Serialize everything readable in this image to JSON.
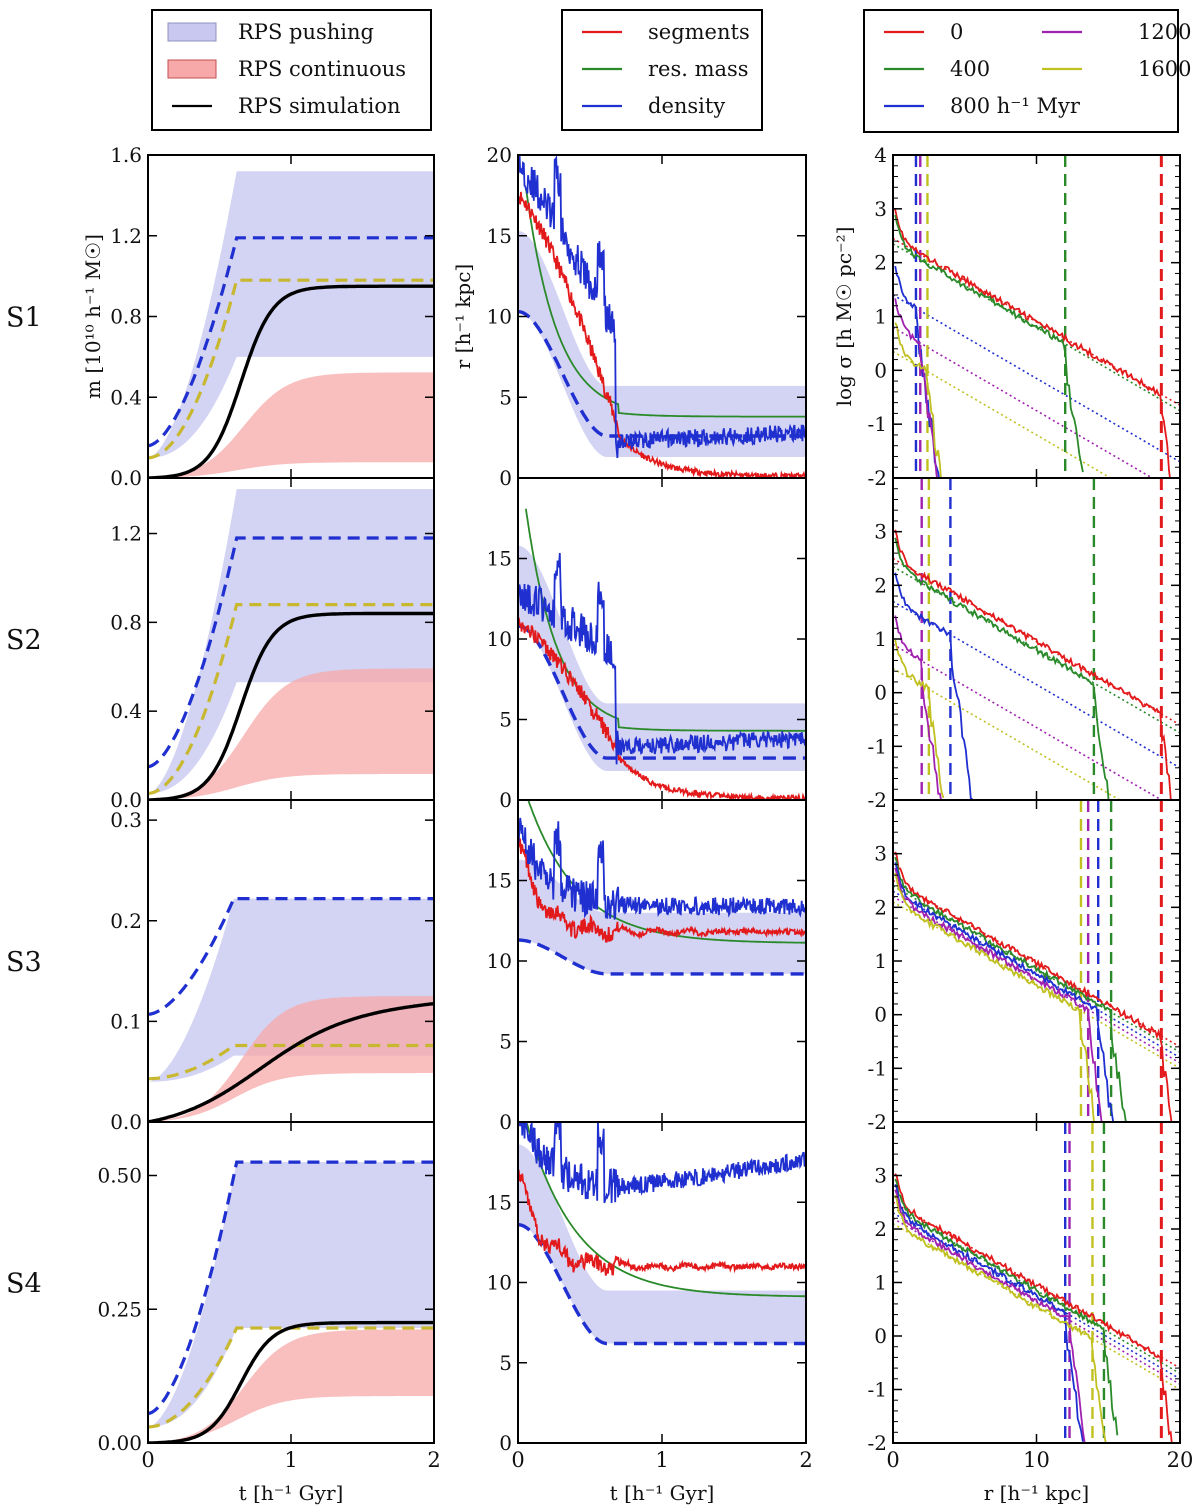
{
  "chart_data": {
    "type": "line",
    "title": "",
    "row_labels": [
      "S1",
      "S2",
      "S3",
      "S4"
    ],
    "legends": [
      {
        "entries": [
          {
            "label": "RPS pushing",
            "kind": "patch",
            "color": "#c8c8f0"
          },
          {
            "label": "RPS continuous",
            "kind": "patch",
            "color": "#f7a8a8"
          },
          {
            "label": "RPS simulation",
            "kind": "line",
            "color": "#000000"
          }
        ]
      },
      {
        "entries": [
          {
            "label": "segments",
            "kind": "line",
            "color": "#e31a1c"
          },
          {
            "label": "res. mass",
            "kind": "line",
            "color": "#2a8a2a"
          },
          {
            "label": "density",
            "kind": "line",
            "color": "#1f2fd0"
          }
        ]
      },
      {
        "entries": [
          {
            "label": "0",
            "kind": "line",
            "color": "#e31a1c"
          },
          {
            "label": "400",
            "kind": "line",
            "color": "#2a8a2a"
          },
          {
            "label": "800 h⁻¹ Myr",
            "kind": "line",
            "color": "#1f2fd0"
          },
          {
            "label": "1200",
            "kind": "line",
            "color": "#a020b0"
          },
          {
            "label": "1600",
            "kind": "line",
            "color": "#c0c020"
          }
        ]
      }
    ],
    "columns": [
      {
        "xlabel": "t [h⁻¹ Gyr]",
        "ylabel": "m [10¹⁰ h⁻¹ M☉]",
        "xlim": [
          0,
          2
        ],
        "xticks": [
          "0",
          "1",
          "2"
        ],
        "panels": [
          {
            "ylim": [
              0,
              1.6
            ],
            "yticks": [
              "0.0",
              "0.4",
              "0.8",
              "1.2",
              "1.6"
            ],
            "push_low": 0.1,
            "push_high": 1.52,
            "push_low_plateau": 0.6,
            "blue_dash_start": 0.16,
            "blue_dash_plateau": 1.19,
            "yellow_dash_start": 0.1,
            "yellow_dash_plateau": 0.98,
            "cont_plateau": 0.53,
            "cont_low": 0.08,
            "sim_plateau": 0.95,
            "t_switch": 0.62
          },
          {
            "ylim": [
              0,
              1.45
            ],
            "yticks": [
              "0.0",
              "0.4",
              "0.8",
              "1.2"
            ],
            "push_low": 0.03,
            "push_high": 1.4,
            "push_low_plateau": 0.53,
            "blue_dash_start": 0.15,
            "blue_dash_plateau": 1.18,
            "yellow_dash_start": 0.03,
            "yellow_dash_plateau": 0.88,
            "cont_plateau": 0.6,
            "cont_low": 0.12,
            "sim_plateau": 0.84,
            "t_switch": 0.62
          },
          {
            "ylim": [
              0,
              0.32
            ],
            "yticks": [
              "0.0",
              "0.1",
              "0.2",
              "0.3"
            ],
            "push_low": 0.04,
            "push_high": 0.222,
            "push_low_plateau": 0.066,
            "blue_dash_start": 0.107,
            "blue_dash_plateau": 0.222,
            "yellow_dash_start": 0.043,
            "yellow_dash_plateau": 0.076,
            "cont_plateau": 0.127,
            "cont_low": 0.05,
            "sim_plateau": 0.12,
            "t_switch": 0.6
          },
          {
            "ylim": [
              0,
              0.6
            ],
            "yticks": [
              "0.00",
              "0.25",
              "0.50"
            ],
            "push_low": 0.03,
            "push_high": 0.525,
            "push_low_plateau": 0.215,
            "blue_dash_start": 0.055,
            "blue_dash_plateau": 0.525,
            "yellow_dash_start": 0.03,
            "yellow_dash_plateau": 0.215,
            "cont_plateau": 0.215,
            "cont_low": 0.09,
            "sim_plateau": 0.225,
            "t_switch": 0.62
          }
        ]
      },
      {
        "xlabel": "t [h⁻¹ Gyr]",
        "ylabel": "r [h⁻¹ kpc]",
        "xlim": [
          0,
          2
        ],
        "xticks": [
          "0",
          "1",
          "2"
        ],
        "panels": [
          {
            "ylim": [
              0,
              20
            ],
            "yticks": [
              "0",
              "5",
              "10",
              "15",
              "20"
            ],
            "band_high_plateau": 5.7,
            "band_low_plateau": 1.3,
            "dash_start": 10.3,
            "dash_plateau": 2.6,
            "segments_start": 17.5,
            "segments_end": 0.1,
            "resmass_plateau": 3.8,
            "density_level": 2.0
          },
          {
            "ylim": [
              0,
              20
            ],
            "yticks": [
              "0",
              "5",
              "10",
              "15"
            ],
            "band_high_plateau": 6.0,
            "band_low_plateau": 1.8,
            "dash_start": 10.8,
            "dash_plateau": 2.6,
            "segments_start": 11.0,
            "segments_end": 0.1,
            "resmass_plateau": 4.3,
            "density_level": 3.0
          },
          {
            "ylim": [
              0,
              20
            ],
            "yticks": [
              "0",
              "5",
              "10",
              "15"
            ],
            "band_high_plateau": 13.0,
            "band_low_plateau": 9.2,
            "dash_start": 11.3,
            "dash_plateau": 9.2,
            "segments_start": 17.5,
            "segments_end": 11.8,
            "resmass_plateau": 11.1,
            "density_level": 13.4
          },
          {
            "ylim": [
              0,
              20
            ],
            "yticks": [
              "0",
              "5",
              "10",
              "15"
            ],
            "band_high_plateau": 9.5,
            "band_low_plateau": 6.2,
            "dash_start": 13.6,
            "dash_plateau": 6.2,
            "segments_start": 17.0,
            "segments_end": 11.0,
            "resmass_plateau": 9.1,
            "density_level": 15.8
          }
        ]
      },
      {
        "xlabel": "r [h⁻¹ kpc]",
        "ylabel": "log σ [h M☉ pc⁻²]",
        "xlim": [
          0,
          20
        ],
        "xticks": [
          "0",
          "10",
          "20"
        ],
        "panels": [
          {
            "ylim": [
              -2,
              4
            ],
            "yticks": [
              "-2",
              "-1",
              "0",
              "1",
              "2",
              "3",
              "4"
            ],
            "vlines": [
              {
                "r": 18.7,
                "color": "#e31a1c"
              },
              {
                "r": 12.0,
                "color": "#2a8a2a"
              },
              {
                "r": 1.6,
                "color": "#1f2fd0"
              },
              {
                "r": 1.9,
                "color": "#a020b0"
              },
              {
                "r": 2.4,
                "color": "#c0c020"
              }
            ],
            "fits": [
              {
                "a": 2.45,
                "b": -0.155
              },
              {
                "a": 2.35,
                "b": -0.155
              },
              {
                "a": 1.4,
                "b": -0.155
              },
              {
                "a": 0.8,
                "b": -0.155
              },
              {
                "a": 0.35,
                "b": -0.155
              }
            ]
          },
          {
            "ylim": [
              -2,
              4
            ],
            "yticks": [
              "-2",
              "-1",
              "0",
              "1",
              "2",
              "3"
            ],
            "vlines": [
              {
                "r": 18.7,
                "color": "#e31a1c"
              },
              {
                "r": 14.0,
                "color": "#2a8a2a"
              },
              {
                "r": 4.0,
                "color": "#1f2fd0"
              },
              {
                "r": 2.0,
                "color": "#a020b0"
              },
              {
                "r": 2.5,
                "color": "#c0c020"
              }
            ],
            "fits": [
              {
                "a": 2.5,
                "b": -0.155
              },
              {
                "a": 2.35,
                "b": -0.155
              },
              {
                "a": 1.7,
                "b": -0.155
              },
              {
                "a": 0.9,
                "b": -0.155
              },
              {
                "a": 0.45,
                "b": -0.155
              }
            ]
          },
          {
            "ylim": [
              -2,
              4
            ],
            "yticks": [
              "-2",
              "-1",
              "0",
              "1",
              "2",
              "3"
            ],
            "vlines": [
              {
                "r": 18.7,
                "color": "#e31a1c"
              },
              {
                "r": 15.2,
                "color": "#2a8a2a"
              },
              {
                "r": 14.3,
                "color": "#1f2fd0"
              },
              {
                "r": 13.6,
                "color": "#a020b0"
              },
              {
                "r": 13.1,
                "color": "#c0c020"
              }
            ],
            "fits": [
              {
                "a": 2.5,
                "b": -0.155
              },
              {
                "a": 2.4,
                "b": -0.155
              },
              {
                "a": 2.3,
                "b": -0.155
              },
              {
                "a": 2.2,
                "b": -0.155
              },
              {
                "a": 2.1,
                "b": -0.155
              }
            ]
          },
          {
            "ylim": [
              -2,
              4
            ],
            "yticks": [
              "-2",
              "-1",
              "0",
              "1",
              "2",
              "3"
            ],
            "vlines": [
              {
                "r": 18.7,
                "color": "#e31a1c"
              },
              {
                "r": 14.7,
                "color": "#2a8a2a"
              },
              {
                "r": 12.0,
                "color": "#1f2fd0"
              },
              {
                "r": 12.3,
                "color": "#a020b0"
              },
              {
                "r": 13.9,
                "color": "#c0c020"
              }
            ],
            "fits": [
              {
                "a": 2.5,
                "b": -0.155
              },
              {
                "a": 2.4,
                "b": -0.155
              },
              {
                "a": 2.3,
                "b": -0.155
              },
              {
                "a": 2.2,
                "b": -0.155
              },
              {
                "a": 2.1,
                "b": -0.155
              }
            ]
          }
        ]
      }
    ]
  }
}
